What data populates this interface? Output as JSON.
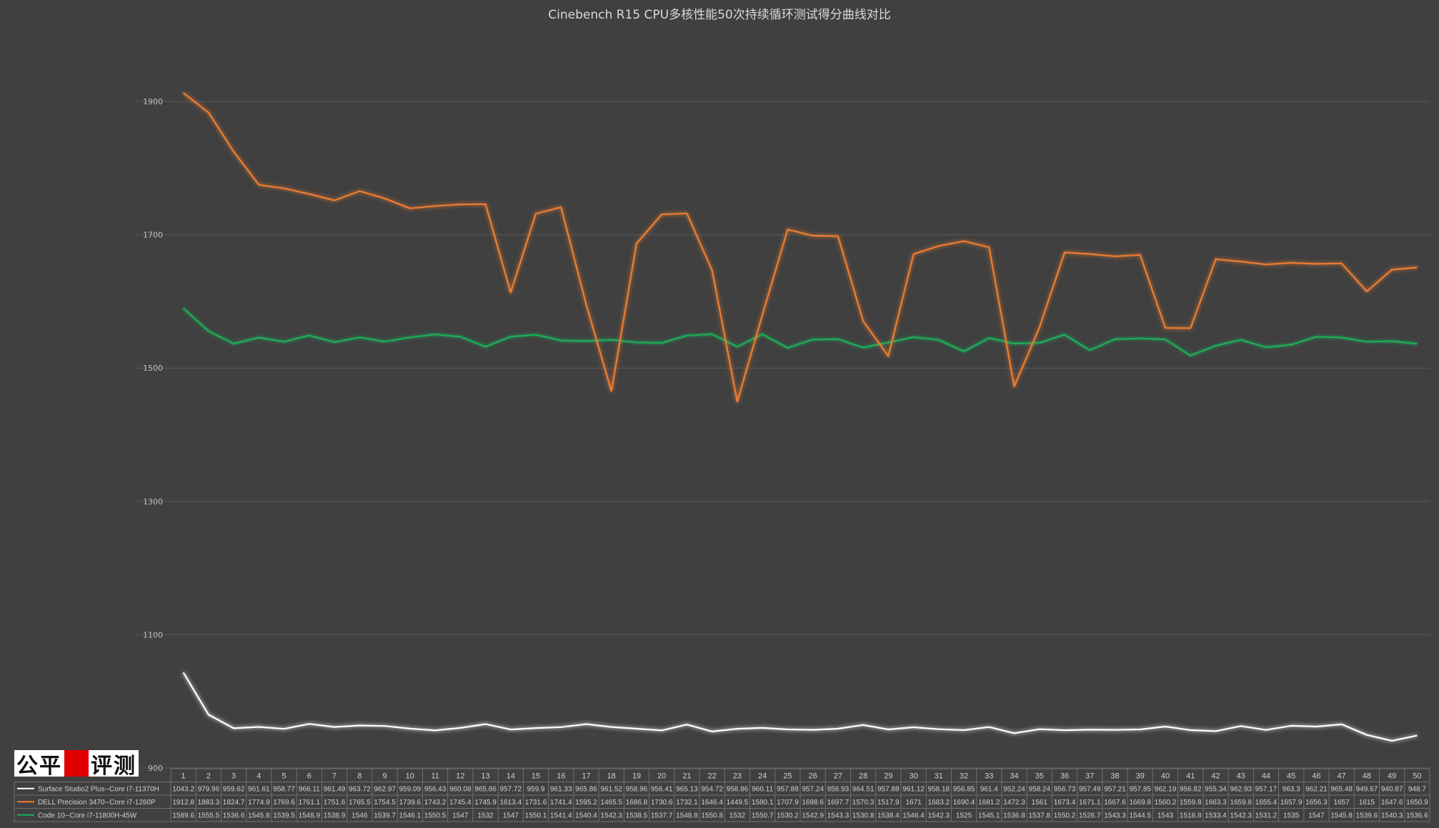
{
  "logo": {
    "text_left": "公平",
    "text_right": "评测",
    "red": "#e00000"
  },
  "chart_data": {
    "type": "line",
    "title": "Cinebench R15 CPU多核性能50次持续循环测试得分曲线对比",
    "xlabel": "",
    "ylabel": "",
    "ylim": [
      900,
      2000
    ],
    "yticks": [
      900,
      1100,
      1300,
      1500,
      1700,
      1900
    ],
    "grid": true,
    "legend": "table-below",
    "x": [
      1,
      2,
      3,
      4,
      5,
      6,
      7,
      8,
      9,
      10,
      11,
      12,
      13,
      14,
      15,
      16,
      17,
      18,
      19,
      20,
      21,
      22,
      23,
      24,
      25,
      26,
      27,
      28,
      29,
      30,
      31,
      32,
      33,
      34,
      35,
      36,
      37,
      38,
      39,
      40,
      41,
      42,
      43,
      44,
      45,
      46,
      47,
      48,
      49,
      50
    ],
    "series": [
      {
        "name": "Surface Studio2 Plus--Core i7-11370H",
        "color": "#ffffff",
        "glow": "#4a7cc7",
        "values": [
          1043.2,
          979.96,
          959.62,
          961.61,
          958.77,
          966.11,
          961.49,
          963.72,
          962.97,
          959.09,
          956.43,
          960.08,
          965.86,
          957.72,
          959.9,
          961.33,
          965.86,
          961.52,
          958.96,
          956.41,
          965.13,
          954.72,
          958.86,
          960.11,
          957.88,
          957.24,
          958.93,
          964.51,
          957.88,
          961.12,
          958.18,
          956.85,
          961.4,
          952.24,
          958.24,
          956.73,
          957.49,
          957.21,
          957.85,
          962.19,
          956.82,
          955.34,
          962.93,
          957.17,
          963.3,
          962.21,
          965.48,
          949.67,
          940.87,
          948.7
        ],
        "labels": [
          "1043.2",
          "979.96",
          "959.62",
          "961.61",
          "958.77",
          "966.11",
          "961.49",
          "963.72",
          "962.97",
          "959.09",
          "956.43",
          "960.08",
          "965.86",
          "957.72",
          "959.9",
          "961.33",
          "965.86",
          "961.52",
          "958.96",
          "956.41",
          "965.13",
          "954.72",
          "958.86",
          "960.11",
          "957.88",
          "957.24",
          "958.93",
          "964.51",
          "957.88",
          "961.12",
          "958.18",
          "956.85",
          "961.4",
          "952.24",
          "958.24",
          "956.73",
          "957.49",
          "957.21",
          "957.85",
          "962.19",
          "956.82",
          "955.34",
          "962.93",
          "957.17",
          "963.3",
          "962.21",
          "965.48",
          "949.67",
          "940.87",
          "948.7"
        ]
      },
      {
        "name": "DELL Precision 3470--Core i7-1260P",
        "color": "#ed7d31",
        "glow": "#ed7d31",
        "values": [
          1912.8,
          1883.3,
          1824.7,
          1774.9,
          1769.6,
          1761.1,
          1751.6,
          1765.5,
          1754.5,
          1739.6,
          1743.2,
          1745.4,
          1745.9,
          1613.4,
          1731.6,
          1741.4,
          1595.2,
          1465.5,
          1686.8,
          1730.6,
          1732.1,
          1646.4,
          1449.5,
          1580.1,
          1707.9,
          1698.6,
          1697.7,
          1570.3,
          1517.9,
          1671,
          1683.2,
          1690.4,
          1681.2,
          1472.3,
          1561,
          1673.4,
          1671.1,
          1667.6,
          1669.8,
          1560.2,
          1559.8,
          1663.3,
          1659.8,
          1655.4,
          1657.9,
          1656.3,
          1657,
          1615,
          1647.6,
          1650.9
        ],
        "labels": [
          "1912.8",
          "1883.3",
          "1824.7",
          "1774.9",
          "1769.6",
          "1761.1",
          "1751.6",
          "1765.5",
          "1754.5",
          "1739.6",
          "1743.2",
          "1745.4",
          "1745.9",
          "1613.4",
          "1731.6",
          "1741.4",
          "1595.2",
          "1465.5",
          "1686.8",
          "1730.6",
          "1732.1",
          "1646.4",
          "1449.5",
          "1580.1",
          "1707.9",
          "1698.6",
          "1697.7",
          "1570.3",
          "1517.9",
          "1671",
          "1683.2",
          "1690.4",
          "1681.2",
          "1472.3",
          "1561",
          "1673.4",
          "1671.1",
          "1667.6",
          "1669.8",
          "1560.2",
          "1559.8",
          "1663.3",
          "1659.8",
          "1655.4",
          "1657.9",
          "1656.3",
          "1657",
          "1615",
          "1647.6",
          "1650.9"
        ]
      },
      {
        "name": "Code 10--Core i7-11800H-45W",
        "color": "#1fae5a",
        "glow": "#1fae5a",
        "values": [
          1589.6,
          1555.5,
          1536.6,
          1545.8,
          1539.5,
          1548.9,
          1538.9,
          1546,
          1539.7,
          1546.1,
          1550.5,
          1547,
          1532,
          1547,
          1550.1,
          1541.4,
          1540.4,
          1542.3,
          1538.5,
          1537.7,
          1548.8,
          1550.8,
          1532,
          1550.7,
          1530.2,
          1542.9,
          1543.3,
          1530.8,
          1538.4,
          1546.4,
          1542.3,
          1525,
          1545.1,
          1536.8,
          1537.8,
          1550.2,
          1526.7,
          1543.3,
          1544.5,
          1543,
          1518.8,
          1533.4,
          1542.3,
          1531.2,
          1535,
          1547,
          1545.8,
          1539.6,
          1540.3,
          1536.6
        ],
        "labels": [
          "1589.6",
          "1555.5",
          "1536.6",
          "1545.8",
          "1539.5",
          "1548.9",
          "1538.9",
          "1546",
          "1539.7",
          "1546.1",
          "1550.5",
          "1547",
          "1532",
          "1547",
          "1550.1",
          "1541.4",
          "1540.4",
          "1542.3",
          "1538.5",
          "1537.7",
          "1548.8",
          "1550.8",
          "1532",
          "1550.7",
          "1530.2",
          "1542.9",
          "1543.3",
          "1530.8",
          "1538.4",
          "1546.4",
          "1542.3",
          "1525",
          "1545.1",
          "1536.8",
          "1537.8",
          "1550.2",
          "1526.7",
          "1543.3",
          "1544.5",
          "1543",
          "1518.8",
          "1533.4",
          "1542.3",
          "1531.2",
          "1535",
          "1547",
          "1545.8",
          "1539.6",
          "1540.3",
          "1536.6"
        ]
      }
    ]
  }
}
